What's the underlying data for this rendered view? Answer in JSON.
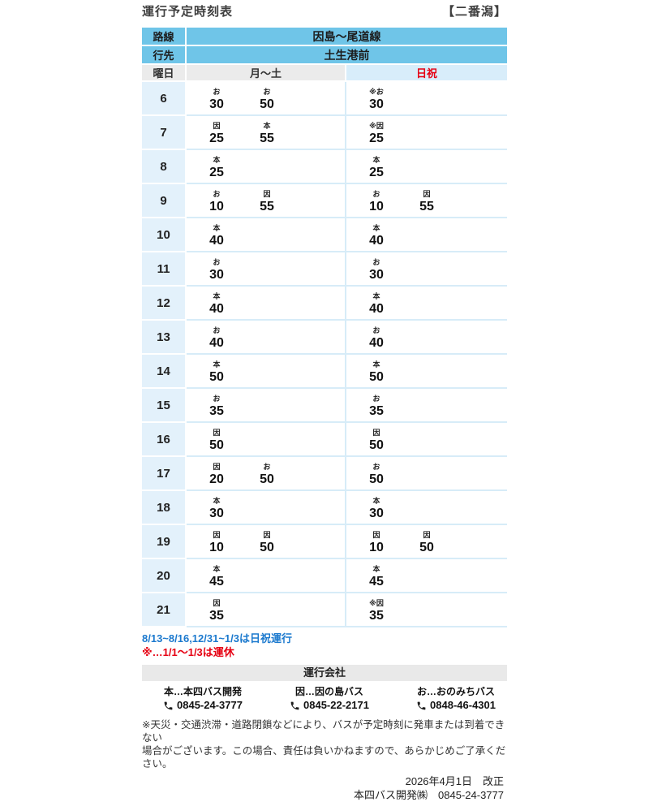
{
  "page": {
    "title": "運行予定時刻表",
    "stop_name": "【二番潟】"
  },
  "colors": {
    "header_blue": "#6FC5E8",
    "holiday_header_bg": "#D8EDFA",
    "holiday_red": "#E60012",
    "weekday_gray": "#EBEBEB",
    "hour_cell_blue": "#E3F1FB",
    "note_blue": "#1B79CE",
    "note_red": "#E60012"
  },
  "table": {
    "route_label": "路線",
    "route_value": "因島〜尾道線",
    "destination_label": "行先",
    "destination_value": "土生港前",
    "day_label": "曜日",
    "weekday_header": "月〜土",
    "holiday_header": "日祝",
    "rows": [
      {
        "hour": "6",
        "weekday": [
          {
            "mark": "お",
            "min": "30"
          },
          {
            "mark": "お",
            "min": "50"
          }
        ],
        "holiday": [
          {
            "mark": "※お",
            "min": "30"
          }
        ]
      },
      {
        "hour": "7",
        "weekday": [
          {
            "mark": "因",
            "min": "25"
          },
          {
            "mark": "本",
            "min": "55"
          }
        ],
        "holiday": [
          {
            "mark": "※因",
            "min": "25"
          }
        ]
      },
      {
        "hour": "8",
        "weekday": [
          {
            "mark": "本",
            "min": "25"
          }
        ],
        "holiday": [
          {
            "mark": "本",
            "min": "25"
          }
        ]
      },
      {
        "hour": "9",
        "weekday": [
          {
            "mark": "お",
            "min": "10"
          },
          {
            "mark": "因",
            "min": "55"
          }
        ],
        "holiday": [
          {
            "mark": "お",
            "min": "10"
          },
          {
            "mark": "因",
            "min": "55"
          }
        ]
      },
      {
        "hour": "10",
        "weekday": [
          {
            "mark": "本",
            "min": "40"
          }
        ],
        "holiday": [
          {
            "mark": "本",
            "min": "40"
          }
        ]
      },
      {
        "hour": "11",
        "weekday": [
          {
            "mark": "お",
            "min": "30"
          }
        ],
        "holiday": [
          {
            "mark": "お",
            "min": "30"
          }
        ]
      },
      {
        "hour": "12",
        "weekday": [
          {
            "mark": "本",
            "min": "40"
          }
        ],
        "holiday": [
          {
            "mark": "本",
            "min": "40"
          }
        ]
      },
      {
        "hour": "13",
        "weekday": [
          {
            "mark": "お",
            "min": "40"
          }
        ],
        "holiday": [
          {
            "mark": "お",
            "min": "40"
          }
        ]
      },
      {
        "hour": "14",
        "weekday": [
          {
            "mark": "本",
            "min": "50"
          }
        ],
        "holiday": [
          {
            "mark": "本",
            "min": "50"
          }
        ]
      },
      {
        "hour": "15",
        "weekday": [
          {
            "mark": "お",
            "min": "35"
          }
        ],
        "holiday": [
          {
            "mark": "お",
            "min": "35"
          }
        ]
      },
      {
        "hour": "16",
        "weekday": [
          {
            "mark": "因",
            "min": "50"
          }
        ],
        "holiday": [
          {
            "mark": "因",
            "min": "50"
          }
        ]
      },
      {
        "hour": "17",
        "weekday": [
          {
            "mark": "因",
            "min": "20"
          },
          {
            "mark": "お",
            "min": "50"
          }
        ],
        "holiday": [
          {
            "mark": "お",
            "min": "50"
          }
        ]
      },
      {
        "hour": "18",
        "weekday": [
          {
            "mark": "本",
            "min": "30"
          }
        ],
        "holiday": [
          {
            "mark": "本",
            "min": "30"
          }
        ]
      },
      {
        "hour": "19",
        "weekday": [
          {
            "mark": "因",
            "min": "10"
          },
          {
            "mark": "因",
            "min": "50"
          }
        ],
        "holiday": [
          {
            "mark": "因",
            "min": "10"
          },
          {
            "mark": "因",
            "min": "50"
          }
        ]
      },
      {
        "hour": "20",
        "weekday": [
          {
            "mark": "本",
            "min": "45"
          }
        ],
        "holiday": [
          {
            "mark": "本",
            "min": "45"
          }
        ]
      },
      {
        "hour": "21",
        "weekday": [
          {
            "mark": "因",
            "min": "35"
          }
        ],
        "holiday": [
          {
            "mark": "※因",
            "min": "35"
          }
        ]
      }
    ]
  },
  "notes": {
    "holiday_operation": "8/13~8/16,12/31~1/3は日祝運行",
    "suspended": "※…1/1〜1/3は運休"
  },
  "companies": {
    "header": "運行会社",
    "items": [
      {
        "name": "本…本四バス開発",
        "phone": "0845-24-3777"
      },
      {
        "name": "因…因の島バス",
        "phone": "0845-22-2171"
      },
      {
        "name": "お…おのみちバス",
        "phone": "0848-46-4301"
      }
    ]
  },
  "disclaimer": {
    "line1": "※天災・交通渋滞・道路閉鎖などにより、バスが予定時刻に発車または到着できない",
    "line2": "場合がございます。この場合、責任は負いかねますので、あらかじめご了承ください。"
  },
  "footer": {
    "revision": "2026年4月1日　改正",
    "company_phone": "本四バス開発㈱　0845-24-3777"
  }
}
